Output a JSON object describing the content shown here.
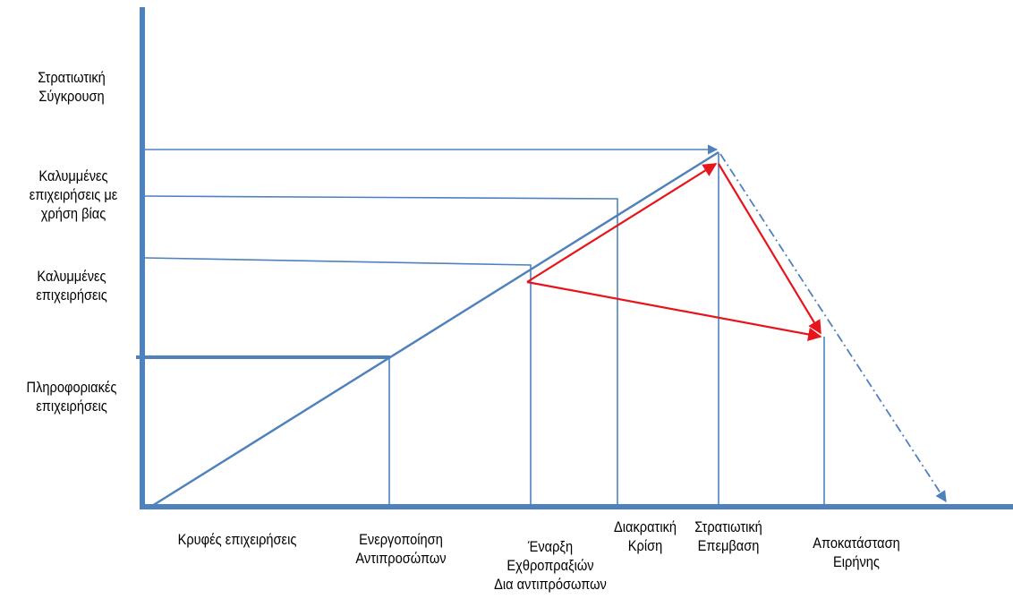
{
  "y_levels": [
    {
      "id": "military-conflict",
      "lines": [
        "Στρατιωτική",
        "Σύγκρουση"
      ]
    },
    {
      "id": "covert-ops-force",
      "lines": [
        "Καλυμμένες",
        "επιχειρήσεις με",
        "χρήση βίας"
      ]
    },
    {
      "id": "covert-ops",
      "lines": [
        "Καλυμμένες",
        "επιχειρήσεις"
      ]
    },
    {
      "id": "intelligence-ops",
      "lines": [
        "Πληροφοριακές",
        "επιχειρήσεις"
      ]
    }
  ],
  "x_stages": [
    {
      "id": "secret-ops",
      "lines": [
        "Κρυφές επιχειρήσεις"
      ]
    },
    {
      "id": "proxy-activation",
      "lines": [
        "Ενεργοποίηση",
        "Αντιπροσώπων"
      ]
    },
    {
      "id": "proxy-hostilities",
      "lines": [
        "Έναρξη",
        "Εχθροπραξιών",
        "Δια αντιπρόσωπων"
      ]
    },
    {
      "id": "state-crisis",
      "lines": [
        "Διακρατική",
        "Κρίση"
      ]
    },
    {
      "id": "military-intervention",
      "lines": [
        "Στρατιωτική",
        "Επεμβαση"
      ]
    },
    {
      "id": "peace-restoration",
      "lines": [
        "Αποκατάσταση",
        "Ειρήνης"
      ]
    }
  ],
  "colors": {
    "axis": "#4f81bd",
    "escalation": "#4f81bd",
    "guide": "#4f81bd",
    "cycle": "#e8141c",
    "text": "#000000"
  }
}
